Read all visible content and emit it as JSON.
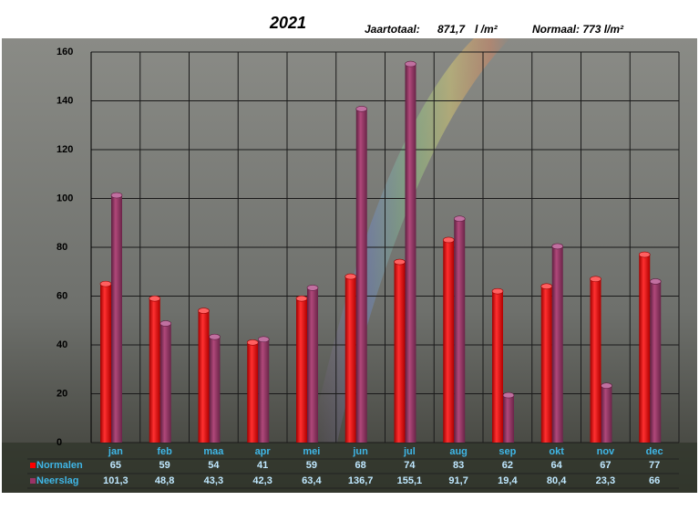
{
  "chart_data": {
    "type": "bar",
    "title": "2021",
    "annotations": [
      "Jaartotaal:",
      "871,7",
      "l /m²",
      "Normaal: 773 l/m²"
    ],
    "categories": [
      "jan",
      "feb",
      "maa",
      "apr",
      "mei",
      "jun",
      "jul",
      "aug",
      "sep",
      "okt",
      "nov",
      "dec"
    ],
    "series": [
      {
        "name": "Normalen",
        "color": "#ff0000",
        "values": [
          65,
          59,
          54,
          41,
          59,
          68,
          74,
          83,
          62,
          64,
          67,
          77
        ]
      },
      {
        "name": "Neerslag",
        "color": "#993366",
        "values": [
          101.3,
          48.8,
          43.3,
          42.3,
          63.4,
          136.7,
          155.1,
          91.7,
          19.4,
          80.4,
          23.3,
          66
        ],
        "value_labels": [
          "101,3",
          "48,8",
          "43,3",
          "42,3",
          "63,4",
          "136,7",
          "155,1",
          "91,7",
          "19,4",
          "80,4",
          "23,3",
          "66"
        ]
      }
    ],
    "ylim": [
      0,
      160
    ],
    "yticks": [
      0,
      20,
      40,
      60,
      80,
      100,
      120,
      140,
      160
    ],
    "grid": true
  }
}
